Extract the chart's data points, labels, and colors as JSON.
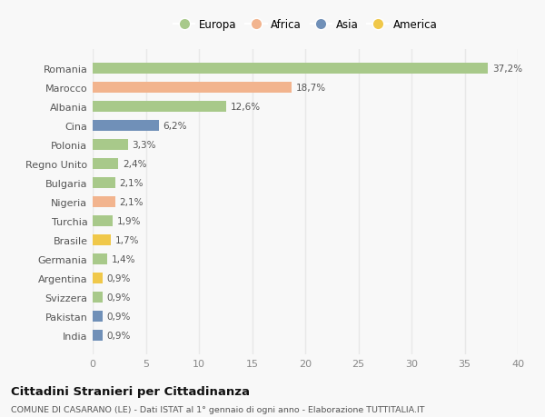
{
  "countries": [
    "Romania",
    "Marocco",
    "Albania",
    "Cina",
    "Polonia",
    "Regno Unito",
    "Bulgaria",
    "Nigeria",
    "Turchia",
    "Brasile",
    "Germania",
    "Argentina",
    "Svizzera",
    "Pakistan",
    "India"
  ],
  "values": [
    37.2,
    18.7,
    12.6,
    6.2,
    3.3,
    2.4,
    2.1,
    2.1,
    1.9,
    1.7,
    1.4,
    0.9,
    0.9,
    0.9,
    0.9
  ],
  "labels": [
    "37,2%",
    "18,7%",
    "12,6%",
    "6,2%",
    "3,3%",
    "2,4%",
    "2,1%",
    "2,1%",
    "1,9%",
    "1,7%",
    "1,4%",
    "0,9%",
    "0,9%",
    "0,9%",
    "0,9%"
  ],
  "continents": [
    "Europa",
    "Africa",
    "Europa",
    "Asia",
    "Europa",
    "Europa",
    "Europa",
    "Africa",
    "Europa",
    "America",
    "Europa",
    "America",
    "Europa",
    "Asia",
    "Asia"
  ],
  "continent_colors": {
    "Europa": "#a8c98a",
    "Africa": "#f2b48e",
    "Asia": "#7090b8",
    "America": "#f0c84a"
  },
  "legend_order": [
    "Europa",
    "Africa",
    "Asia",
    "America"
  ],
  "title": "Cittadini Stranieri per Cittadinanza",
  "subtitle": "COMUNE DI CASARANO (LE) - Dati ISTAT al 1° gennaio di ogni anno - Elaborazione TUTTITALIA.IT",
  "xlim": [
    0,
    40
  ],
  "xticks": [
    0,
    5,
    10,
    15,
    20,
    25,
    30,
    35,
    40
  ],
  "background_color": "#f8f8f8",
  "grid_color": "#e8e8e8",
  "bar_height": 0.55
}
